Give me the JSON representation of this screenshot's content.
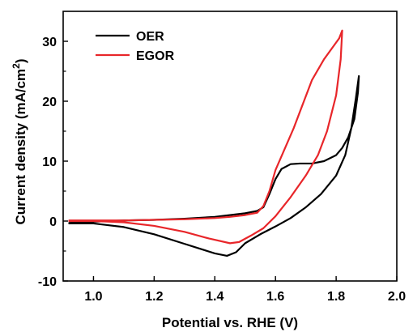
{
  "chart_data": {
    "type": "line",
    "xlabel": "Potential vs. RHE (V)",
    "ylabel_main": "Current density (mA/cm",
    "ylabel_sup": "2",
    "ylabel_close": ")",
    "xlim": [
      0.9,
      2.0
    ],
    "ylim": [
      -10,
      35
    ],
    "x_ticks": [
      1.0,
      1.2,
      1.4,
      1.6,
      1.8,
      2.0
    ],
    "x_tick_labels": [
      "1.0",
      "1.2",
      "1.4",
      "1.6",
      "1.8",
      "2.0"
    ],
    "y_ticks": [
      -10,
      0,
      10,
      20,
      30
    ],
    "y_tick_labels": [
      "-10",
      "0",
      "10",
      "20",
      "30"
    ],
    "legend_position": "top-left",
    "grid": false,
    "series": [
      {
        "name": "OER",
        "color": "#000000",
        "points": [
          [
            0.92,
            -0.4
          ],
          [
            1.0,
            -0.4
          ],
          [
            1.1,
            -1.0
          ],
          [
            1.2,
            -2.2
          ],
          [
            1.3,
            -3.8
          ],
          [
            1.4,
            -5.4
          ],
          [
            1.44,
            -5.8
          ],
          [
            1.47,
            -5.2
          ],
          [
            1.5,
            -3.7
          ],
          [
            1.55,
            -2.2
          ],
          [
            1.6,
            -0.9
          ],
          [
            1.65,
            0.5
          ],
          [
            1.7,
            2.3
          ],
          [
            1.75,
            4.5
          ],
          [
            1.8,
            7.6
          ],
          [
            1.83,
            11.0
          ],
          [
            1.85,
            15.5
          ],
          [
            1.865,
            20.5
          ],
          [
            1.875,
            24.2
          ],
          [
            1.872,
            21.5
          ],
          [
            1.86,
            17.0
          ],
          [
            1.84,
            14.0
          ],
          [
            1.82,
            12.2
          ],
          [
            1.8,
            11.0
          ],
          [
            1.76,
            10.0
          ],
          [
            1.72,
            9.6
          ],
          [
            1.68,
            9.6
          ],
          [
            1.65,
            9.5
          ],
          [
            1.62,
            8.7
          ],
          [
            1.6,
            7.0
          ],
          [
            1.58,
            4.5
          ],
          [
            1.56,
            2.3
          ],
          [
            1.54,
            1.7
          ],
          [
            1.5,
            1.3
          ],
          [
            1.45,
            1.0
          ],
          [
            1.4,
            0.7
          ],
          [
            1.3,
            0.4
          ],
          [
            1.2,
            0.2
          ],
          [
            1.1,
            0.1
          ],
          [
            1.0,
            -0.1
          ],
          [
            0.92,
            -0.3
          ]
        ]
      },
      {
        "name": "EGOR",
        "color": "#e8262a",
        "points": [
          [
            0.92,
            0.0
          ],
          [
            1.0,
            0.0
          ],
          [
            1.1,
            -0.2
          ],
          [
            1.2,
            -0.8
          ],
          [
            1.3,
            -1.8
          ],
          [
            1.38,
            -2.9
          ],
          [
            1.45,
            -3.7
          ],
          [
            1.48,
            -3.5
          ],
          [
            1.52,
            -2.4
          ],
          [
            1.56,
            -1.2
          ],
          [
            1.6,
            0.8
          ],
          [
            1.65,
            4.0
          ],
          [
            1.7,
            7.6
          ],
          [
            1.74,
            11.0
          ],
          [
            1.77,
            15.0
          ],
          [
            1.8,
            21.0
          ],
          [
            1.815,
            27.0
          ],
          [
            1.82,
            31.8
          ],
          [
            1.81,
            30.5
          ],
          [
            1.8,
            29.8
          ],
          [
            1.76,
            27.0
          ],
          [
            1.72,
            23.5
          ],
          [
            1.69,
            19.5
          ],
          [
            1.66,
            15.5
          ],
          [
            1.63,
            12.0
          ],
          [
            1.6,
            8.5
          ],
          [
            1.58,
            5.0
          ],
          [
            1.56,
            2.5
          ],
          [
            1.54,
            1.4
          ],
          [
            1.5,
            1.0
          ],
          [
            1.45,
            0.7
          ],
          [
            1.4,
            0.5
          ],
          [
            1.3,
            0.3
          ],
          [
            1.2,
            0.2
          ],
          [
            1.1,
            0.1
          ],
          [
            1.0,
            0.1
          ],
          [
            0.92,
            0.1
          ]
        ]
      }
    ]
  }
}
